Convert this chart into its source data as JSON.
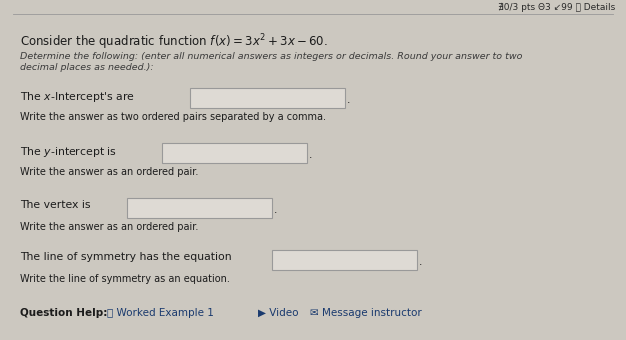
{
  "bg_color": "#ccc8c0",
  "top_bar_color": "#b8b4ac",
  "header_text": "∄0/3 pts Θ3 ↙99 ⓘ Details",
  "title_line": "Consider the quadratic function $f(x) = 3x^2 + 3x - 60$.",
  "subtitle_line1": "Determine the following: (enter all numerical answers as integers or decimals. Round your answer to two",
  "subtitle_line2": "decimal places as needed.):",
  "section1_label": "The $x$-Intercept's are",
  "section1_sub": "Write the answer as two ordered pairs separated by a comma.",
  "section2_label": "The $y$-intercept is",
  "section2_sub": "Write the answer as an ordered pair.",
  "section3_label": "The vertex is",
  "section3_sub": "Write the answer as an ordered pair.",
  "section4_label": "The line of symmetry has the equation",
  "section4_sub": "Write the line of symmetry as an equation.",
  "box_fill": "#dedad4",
  "box_border": "#999999",
  "text_dark": "#1c1c1c",
  "text_italic_color": "#3a3a3a",
  "header_color": "#2a2a2a",
  "link_color": "#1a3a6e",
  "title_fontsize": 8.5,
  "subtitle_fontsize": 6.8,
  "body_fontsize": 7.8,
  "sub_fontsize": 7.0,
  "footer_fontsize": 7.5,
  "header_fontsize": 6.5
}
